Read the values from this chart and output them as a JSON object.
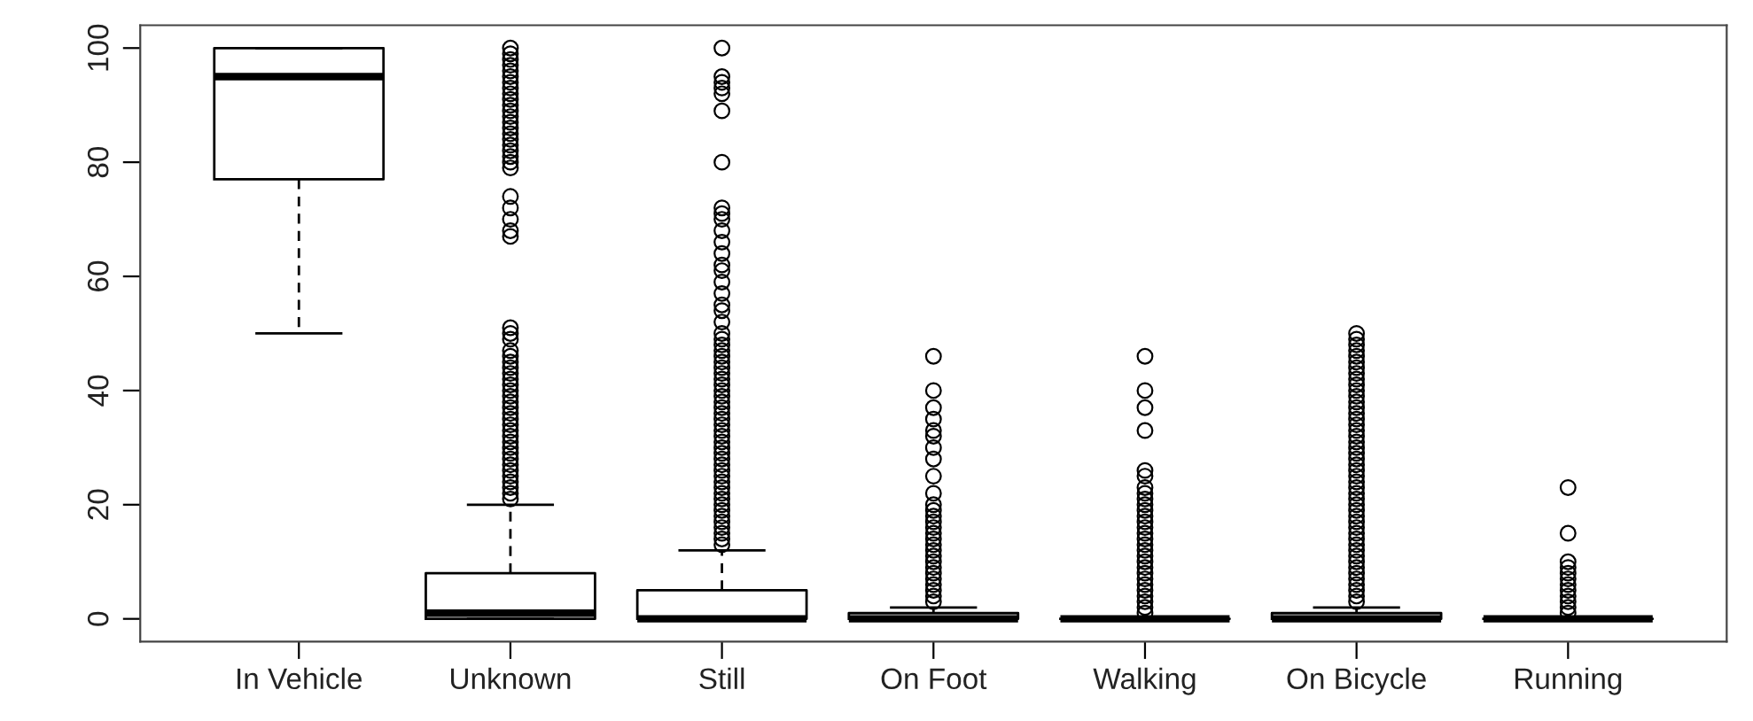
{
  "chart_data": {
    "type": "box",
    "categories": [
      "In Vehicle",
      "Unknown",
      "Still",
      "On Foot",
      "Walking",
      "On Bicycle",
      "Running"
    ],
    "boxes": [
      {
        "low": 50,
        "q1": 77,
        "median": 95,
        "q3": 100,
        "high": 100
      },
      {
        "low": 0,
        "q1": 0,
        "median": 1,
        "q3": 8,
        "high": 20,
        "outliers": [
          21,
          22,
          23,
          24,
          25,
          26,
          27,
          28,
          29,
          30,
          31,
          32,
          33,
          34,
          35,
          36,
          37,
          38,
          39,
          40,
          41,
          42,
          43,
          44,
          45,
          46,
          47,
          49,
          50,
          51,
          67,
          68,
          70,
          72,
          74,
          79,
          80,
          81,
          82,
          83,
          84,
          85,
          86,
          87,
          88,
          89,
          90,
          91,
          92,
          93,
          94,
          95,
          96,
          97,
          98,
          99,
          100
        ]
      },
      {
        "low": 0,
        "q1": 0,
        "median": 0,
        "q3": 5,
        "high": 12,
        "outliers": [
          13,
          14,
          15,
          16,
          17,
          18,
          19,
          20,
          21,
          22,
          23,
          24,
          25,
          26,
          27,
          28,
          29,
          30,
          31,
          32,
          33,
          34,
          35,
          36,
          37,
          38,
          39,
          40,
          41,
          42,
          43,
          44,
          45,
          46,
          47,
          48,
          49,
          50,
          52,
          54,
          55,
          57,
          59,
          61,
          62,
          64,
          66,
          68,
          70,
          71,
          72,
          80,
          89,
          92,
          93,
          94,
          95,
          100
        ]
      },
      {
        "low": 0,
        "q1": 0,
        "median": 0,
        "q3": 1,
        "high": 2,
        "outliers": [
          3,
          4,
          5,
          6,
          7,
          8,
          9,
          10,
          11,
          12,
          13,
          14,
          15,
          16,
          17,
          18,
          19,
          20,
          22,
          25,
          28,
          30,
          32,
          33,
          35,
          37,
          40,
          46
        ]
      },
      {
        "low": 0,
        "q1": 0,
        "median": 0,
        "q3": 0,
        "high": 0,
        "outliers": [
          1,
          2,
          3,
          4,
          5,
          6,
          7,
          8,
          9,
          10,
          11,
          12,
          13,
          14,
          15,
          16,
          17,
          18,
          19,
          20,
          21,
          22,
          23,
          25,
          26,
          33,
          37,
          40,
          46
        ]
      },
      {
        "low": 0,
        "q1": 0,
        "median": 0,
        "q3": 1,
        "high": 2,
        "outliers": [
          3,
          4,
          5,
          6,
          7,
          8,
          9,
          10,
          11,
          12,
          13,
          14,
          15,
          16,
          17,
          18,
          19,
          20,
          21,
          22,
          23,
          24,
          25,
          26,
          27,
          28,
          29,
          30,
          31,
          32,
          33,
          34,
          35,
          36,
          37,
          38,
          39,
          40,
          41,
          42,
          43,
          44,
          45,
          46,
          47,
          48,
          49,
          50
        ]
      },
      {
        "low": 0,
        "q1": 0,
        "median": 0,
        "q3": 0,
        "high": 0,
        "outliers": [
          1,
          2,
          3,
          4,
          5,
          6,
          7,
          8,
          9,
          10,
          15,
          23
        ]
      }
    ],
    "ylim": [
      -4,
      104
    ],
    "yticks": [
      0,
      20,
      40,
      60,
      80,
      100
    ],
    "grid": false
  }
}
